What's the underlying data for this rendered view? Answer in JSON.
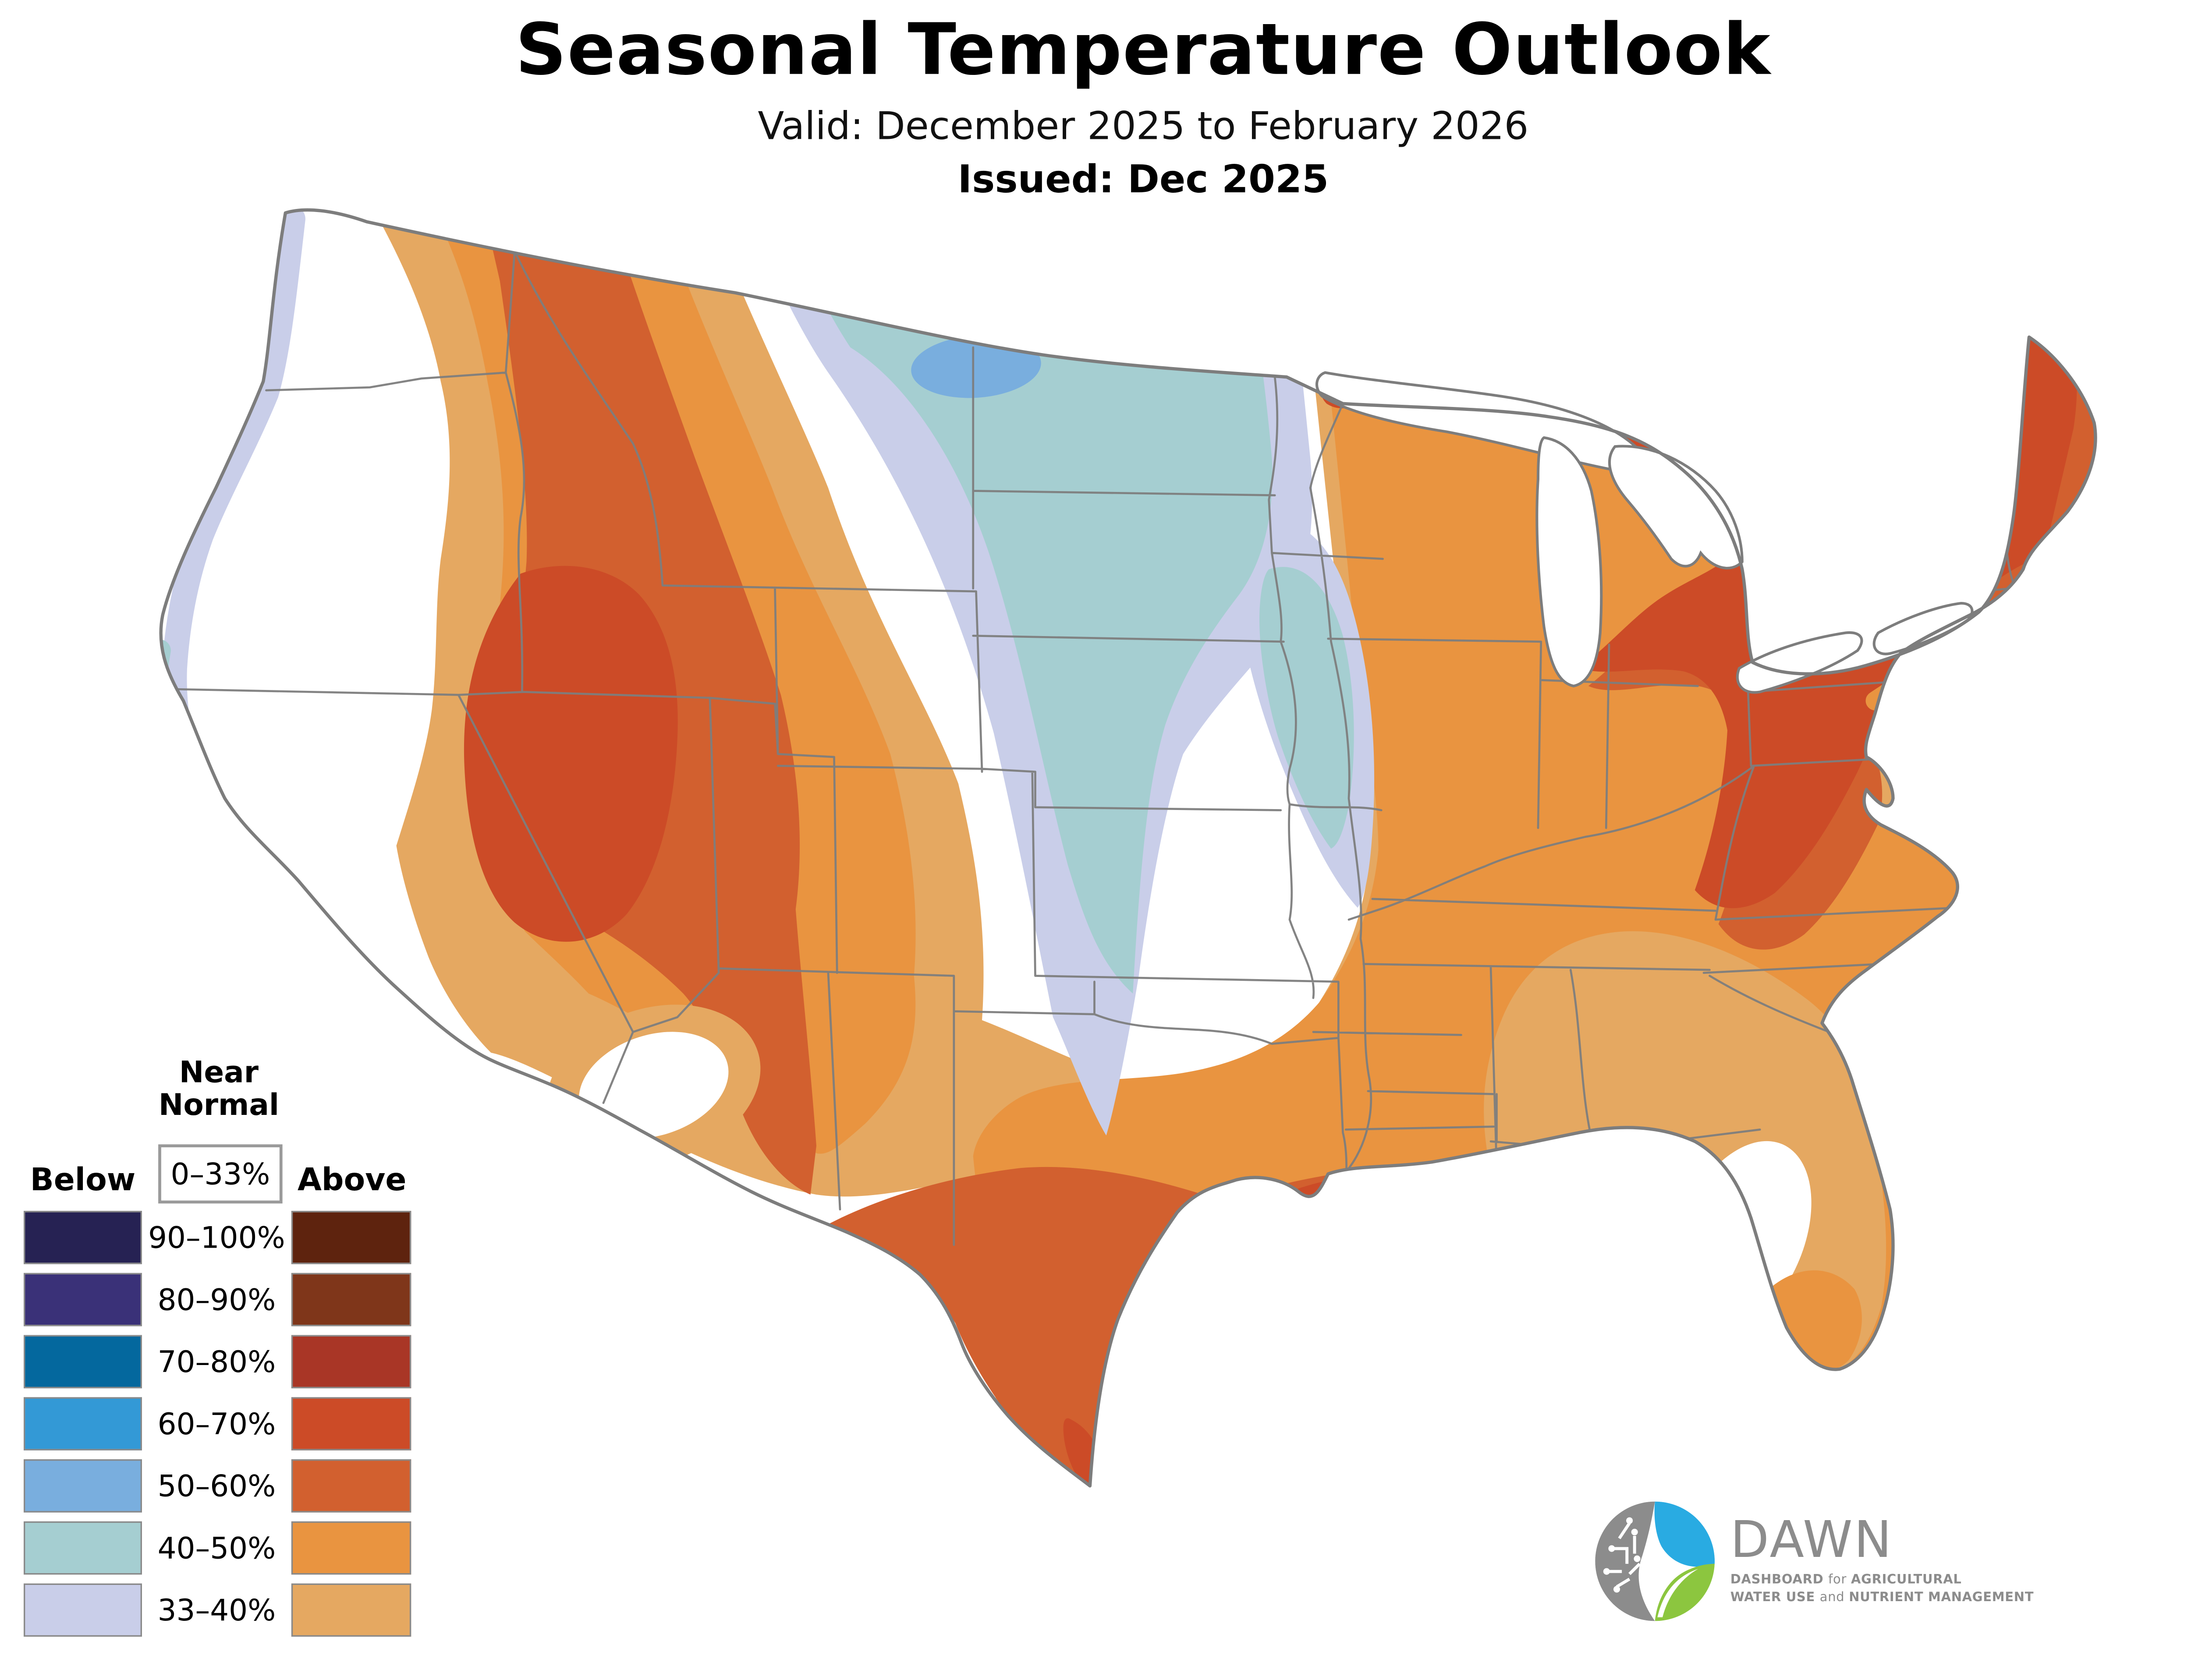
{
  "header": {
    "title": "Seasonal Temperature Outlook",
    "valid": "Valid: December 2025 to February 2026",
    "issued": "Issued: Dec 2025"
  },
  "legend": {
    "near_normal_line1": "Near",
    "near_normal_line2": "Normal",
    "near_normal_box": "0–33%",
    "below_header": "Below",
    "above_header": "Above",
    "rows": [
      {
        "range": "90–100%",
        "below_color": "#262253",
        "above_color": "#5e230e"
      },
      {
        "range": "80–90%",
        "below_color": "#3a3178",
        "above_color": "#7f361a"
      },
      {
        "range": "70–80%",
        "below_color": "#04689e",
        "above_color": "#a93626"
      },
      {
        "range": "60–70%",
        "below_color": "#3399d6",
        "above_color": "#cc4b27"
      },
      {
        "range": "50–60%",
        "below_color": "#79aede",
        "above_color": "#d2602f"
      },
      {
        "range": "40–50%",
        "below_color": "#a5ced1",
        "above_color": "#e99440"
      },
      {
        "range": "33–40%",
        "below_color": "#c9cee9",
        "above_color": "#e5a861"
      }
    ]
  },
  "colors": {
    "white": "#ffffff",
    "state_gray": "#7d7d7d",
    "outline_gray": "#7d7d7d",
    "below_60_70": "#3399d6",
    "below_50_60": "#79aede",
    "below_40_50": "#a5ced1",
    "below_33_40": "#c9cee9",
    "above_60_70": "#cc4b27",
    "above_50_60": "#d2602f",
    "above_40_50": "#e99440",
    "above_33_40": "#e5a861",
    "logo_gray": "#8c8c8c",
    "logo_blue": "#29abe2",
    "logo_green": "#8cc63f"
  },
  "logo": {
    "name": "DAWN",
    "tagline1": [
      {
        "t": "DASHBOARD ",
        "b": 1
      },
      {
        "t": "for ",
        "b": 0
      },
      {
        "t": "AGRICULTURAL",
        "b": 1
      }
    ],
    "tagline2": [
      {
        "t": "WATER USE ",
        "b": 1
      },
      {
        "t": "and ",
        "b": 0
      },
      {
        "t": "NUTRIENT MANAGEMENT",
        "b": 1
      }
    ]
  },
  "map_regions": [
    {
      "area": "Interior Northwest / Great Basin core (S Idaho, N Nevada, NW Utah)",
      "outlook": "above",
      "probability": "60–70%"
    },
    {
      "area": "Intermountain West (Nevada, Utah, W Montana, W Wyoming, W Colorado, W New Mexico)",
      "outlook": "above",
      "probability": "50–60%"
    },
    {
      "area": "Rockies and Southwest fringe (Montana, Wyoming, Colorado, Arizona, New Mexico)",
      "outlook": "above",
      "probability": "33–50%"
    },
    {
      "area": "Pacific Northwest coastal strip (W Washington, W Oregon)",
      "outlook": "below",
      "probability": "33–40%"
    },
    {
      "area": "Northern California coast",
      "outlook": "below",
      "probability": "40–50%"
    },
    {
      "area": "Northern Plains (E Montana, North Dakota, South Dakota, W Minnesota, E Nebraska)",
      "outlook": "below",
      "probability": "40–50%"
    },
    {
      "area": "Northern North Dakota",
      "outlook": "below",
      "probability": "50–60%"
    },
    {
      "area": "Central Plains tongue (Kansas, Oklahoma, NW Missouri, Iowa fringe)",
      "outlook": "below",
      "probability": "33–40%"
    },
    {
      "area": "Central Plains / Ohio–Mississippi gap and Pacific interior",
      "outlook": "near_normal",
      "probability": "0–33%"
    },
    {
      "area": "Great Lakes and Northeast (N Wisconsin, Michigan, New York, Pennsylvania, W Virginia, New England)",
      "outlook": "above",
      "probability": "60–70%"
    },
    {
      "area": "Ring around Northeast core and Maine coast",
      "outlook": "above",
      "probability": "50–60%"
    },
    {
      "area": "Ohio Valley, Mid-South, mid-Atlantic coast",
      "outlook": "above",
      "probability": "40–50%"
    },
    {
      "area": "Southeast (E Alabama, Georgia, Florida peninsula)",
      "outlook": "above",
      "probability": "33–40%"
    },
    {
      "area": "Central Florida",
      "outlook": "near_normal",
      "probability": "0–33%"
    },
    {
      "area": "South Florida tip",
      "outlook": "above",
      "probability": "40–50%"
    },
    {
      "area": "West and South Texas, Gulf Coast to Florida panhandle",
      "outlook": "above",
      "probability": "50–60%"
    },
    {
      "area": "SE Louisiana delta and S Texas tip",
      "outlook": "above",
      "probability": "60–70%"
    }
  ]
}
